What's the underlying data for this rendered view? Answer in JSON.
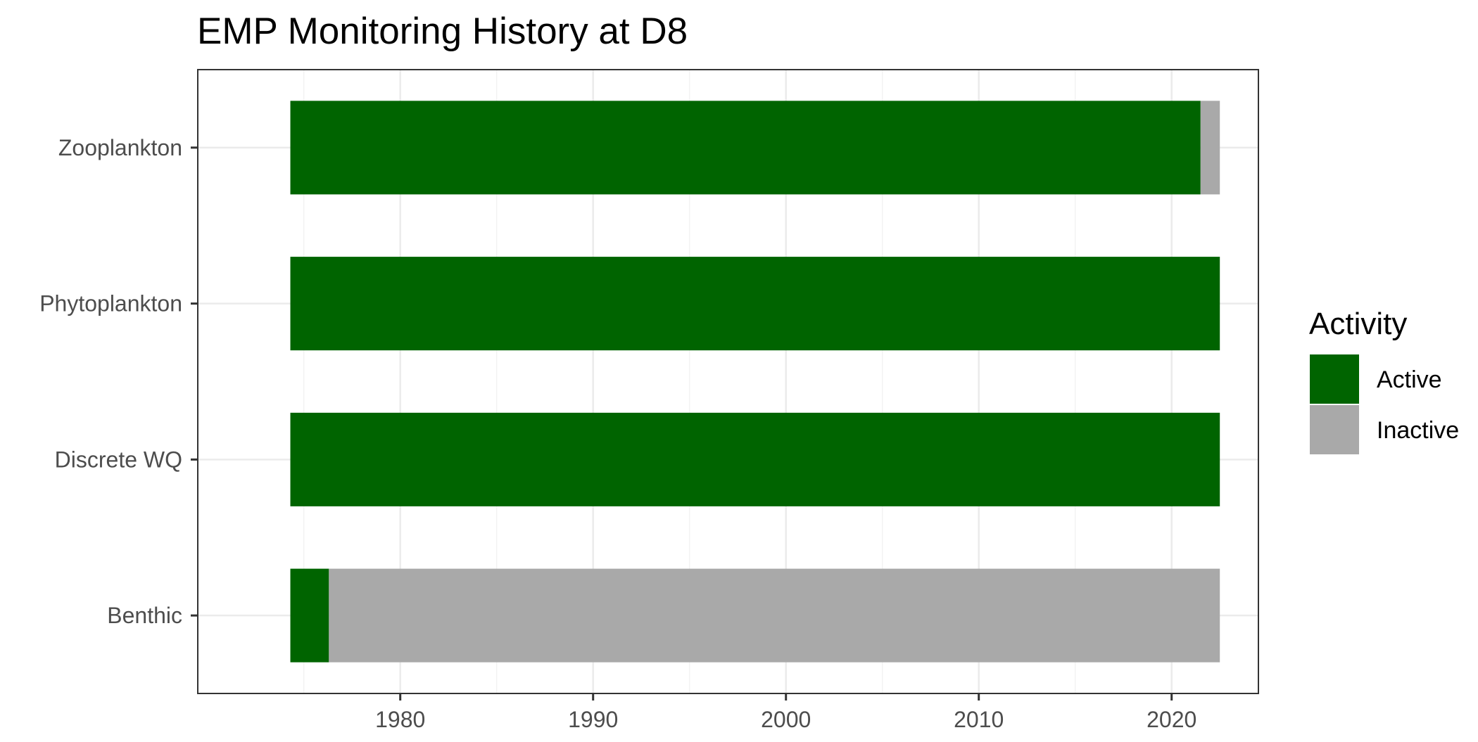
{
  "chart_data": {
    "type": "bar",
    "orientation": "horizontal",
    "stacked": true,
    "title": "EMP Monitoring History at D8",
    "xlabel": "",
    "ylabel": "",
    "xlim": [
      1969.5,
      2024.5
    ],
    "x_ticks": [
      1980,
      1990,
      2000,
      2010,
      2020
    ],
    "x_tick_labels": [
      "1980",
      "1990",
      "2000",
      "2010",
      "2020"
    ],
    "categories": [
      "Benthic",
      "Discrete WQ",
      "Phytoplankton",
      "Zooplankton"
    ],
    "segments": [
      {
        "category": "Zooplankton",
        "status": "Active",
        "start": 1974.3,
        "end": 2021.5
      },
      {
        "category": "Zooplankton",
        "status": "Inactive",
        "start": 2021.5,
        "end": 2022.5
      },
      {
        "category": "Phytoplankton",
        "status": "Active",
        "start": 1974.3,
        "end": 2022.5
      },
      {
        "category": "Discrete WQ",
        "status": "Active",
        "start": 1974.3,
        "end": 2022.5
      },
      {
        "category": "Benthic",
        "status": "Active",
        "start": 1974.3,
        "end": 1976.3
      },
      {
        "category": "Benthic",
        "status": "Inactive",
        "start": 1976.3,
        "end": 2022.5
      }
    ],
    "legend": {
      "title": "Activity",
      "position": "right",
      "entries": [
        {
          "label": "Active",
          "color": "#006400"
        },
        {
          "label": "Inactive",
          "color": "#a9a9a9"
        }
      ]
    },
    "grid": true,
    "colors": {
      "Active": "#006400",
      "Inactive": "#a9a9a9"
    }
  }
}
